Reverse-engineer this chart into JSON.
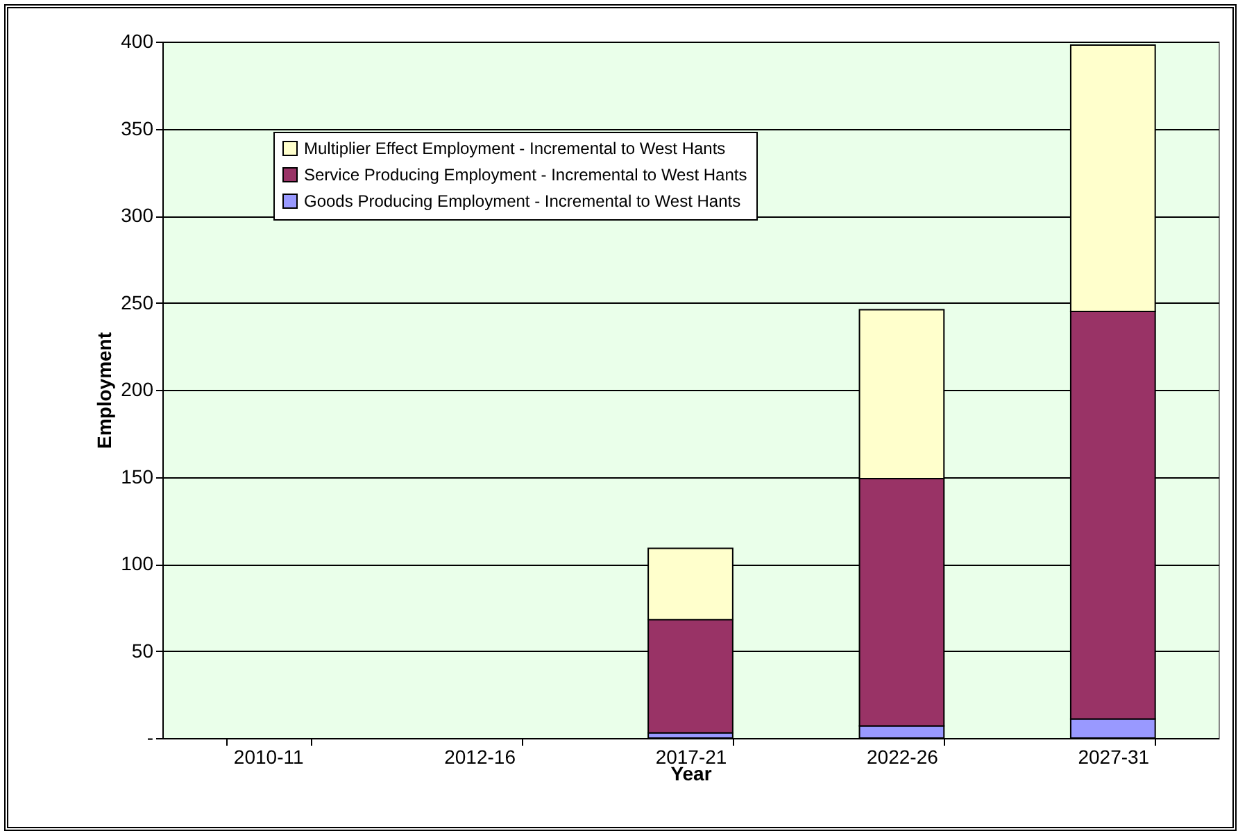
{
  "chart_data": {
    "type": "bar",
    "stacked": true,
    "xlabel": "Year",
    "ylabel": "Employment",
    "categories": [
      "2010-11",
      "2012-16",
      "2017-21",
      "2022-26",
      "2027-31"
    ],
    "series": [
      {
        "name": "Goods Producing Employment - Incremental to West Hants",
        "color": "#9999ff",
        "values": [
          0,
          0,
          3,
          7,
          11
        ]
      },
      {
        "name": "Service Producing Employment - Incremental to West Hants",
        "color": "#993366",
        "values": [
          0,
          0,
          65,
          142,
          234
        ]
      },
      {
        "name": "Multiplier Effect Employment - Incremental to West Hants",
        "color": "#ffffcc",
        "values": [
          0,
          0,
          41,
          97,
          153
        ]
      }
    ],
    "ylim": [
      0,
      400
    ],
    "yticks": [
      {
        "value": 0,
        "label": "-"
      },
      50,
      100,
      150,
      200,
      250,
      300,
      350,
      400
    ],
    "grid": "y",
    "legend": "top left"
  }
}
